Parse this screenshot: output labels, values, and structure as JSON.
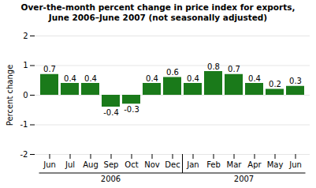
{
  "chart_data": {
    "type": "bar",
    "title": "Over-the-month percent change in price index for exports,\nJune 2006–June 2007 (not seasonally adjusted)",
    "categories": [
      "Jun",
      "Jul",
      "Aug",
      "Sep",
      "Oct",
      "Nov",
      "Dec",
      "Jan",
      "Feb",
      "Mar",
      "Apr",
      "May",
      "Jun"
    ],
    "values": [
      0.7,
      0.4,
      0.4,
      -0.4,
      -0.3,
      0.4,
      0.6,
      0.4,
      0.8,
      0.7,
      0.4,
      0.2,
      0.3
    ],
    "color": "#1a7a1a",
    "ylabel": "Percent change",
    "ylim": [
      -2,
      2
    ],
    "yticks": [
      -2,
      -1,
      0,
      1,
      2
    ],
    "grid": true,
    "data_labels": true,
    "annotations": [
      {
        "text": "2006",
        "categories": [
          "Jun",
          "Jul",
          "Aug",
          "Sep",
          "Oct",
          "Nov",
          "Dec"
        ]
      },
      {
        "text": "2007",
        "categories": [
          "Jan",
          "Feb",
          "Mar",
          "Apr",
          "May",
          "Jun"
        ]
      }
    ]
  }
}
